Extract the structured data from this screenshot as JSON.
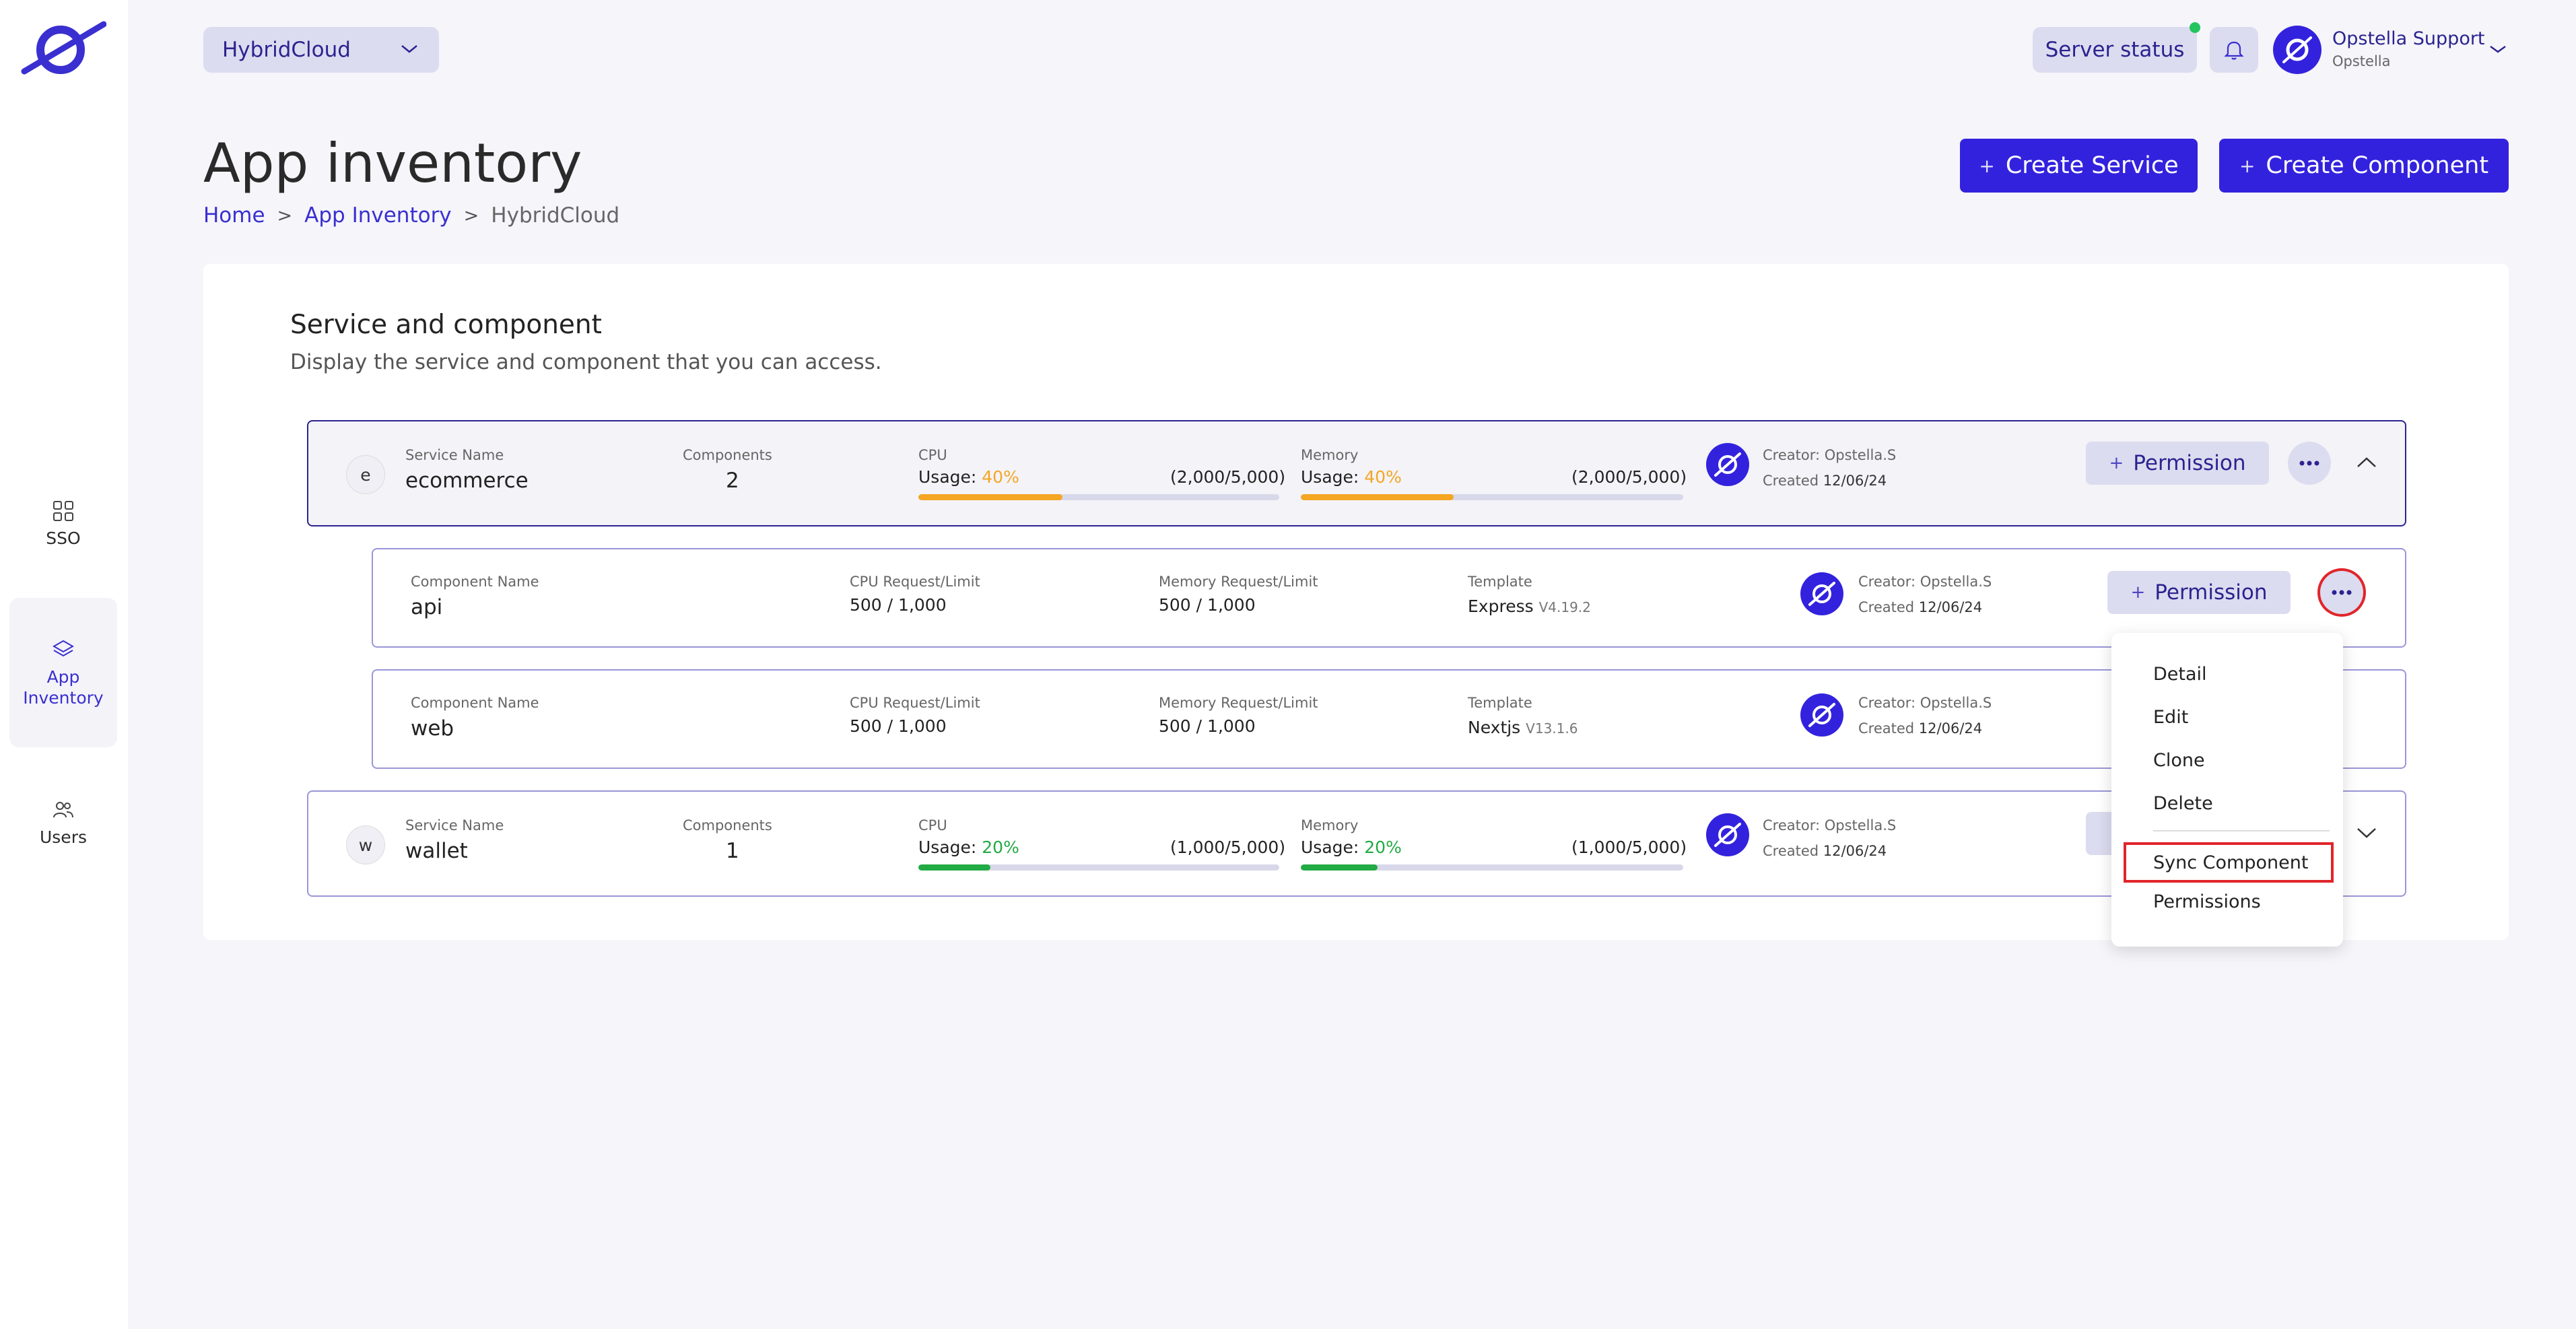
{
  "sidebar": {
    "items": [
      {
        "label": "SSO",
        "icon": "grid-icon"
      },
      {
        "label": "App\nInventory",
        "icon": "layers-icon",
        "active": true
      },
      {
        "label": "Users",
        "icon": "users-icon"
      }
    ]
  },
  "topbar": {
    "project": "HybridCloud",
    "server_status": "Server status",
    "user_name": "Opstella Support",
    "user_org": "Opstella"
  },
  "header": {
    "title": "App inventory",
    "breadcrumb": [
      "Home",
      "App Inventory",
      "HybridCloud"
    ],
    "create_service": "Create Service",
    "create_component": "Create Component"
  },
  "card": {
    "title": "Service and component",
    "subtitle": "Display the service and component that you can access."
  },
  "labels": {
    "service_name": "Service Name",
    "components": "Components",
    "cpu": "CPU",
    "memory": "Memory",
    "usage": "Usage:",
    "component_name": "Component Name",
    "cpu_req": "CPU Request/Limit",
    "mem_req": "Memory Request/Limit",
    "template": "Template",
    "creator": "Creator: Opstella.S",
    "created": "Created",
    "permission": "Permission"
  },
  "services": [
    {
      "letter": "e",
      "name": "ecommerce",
      "components": "2",
      "cpu_usage": "40%",
      "cpu_pct": 0.4,
      "cpu_ratio": "(2,000/5,000)",
      "mem_usage": "40%",
      "mem_pct": 0.4,
      "mem_ratio": "(2,000/5,000)",
      "created": "12/06/24"
    },
    {
      "letter": "w",
      "name": "wallet",
      "components": "1",
      "cpu_usage": "20%",
      "cpu_pct": 0.2,
      "cpu_ratio": "(1,000/5,000)",
      "mem_usage": "20%",
      "mem_pct": 0.2,
      "mem_ratio": "(1,000/5,000)",
      "created": "12/06/24"
    }
  ],
  "components": [
    {
      "name": "api",
      "cpu": "500 / 1,000",
      "mem": "500 / 1,000",
      "template": "Express",
      "version": "V4.19.2",
      "created": "12/06/24"
    },
    {
      "name": "web",
      "cpu": "500 / 1,000",
      "mem": "500 / 1,000",
      "template": "Nextjs",
      "version": "V13.1.6",
      "created": "12/06/24"
    }
  ],
  "menu": {
    "items": [
      "Detail",
      "Edit",
      "Clone",
      "Delete",
      "Sync Component",
      "Permissions"
    ],
    "selected": "Sync Component"
  },
  "colors": {
    "brand": "#3322dd",
    "usage_40": "#f5a623",
    "usage_20": "#22aa44",
    "highlight": "#e0252b"
  }
}
